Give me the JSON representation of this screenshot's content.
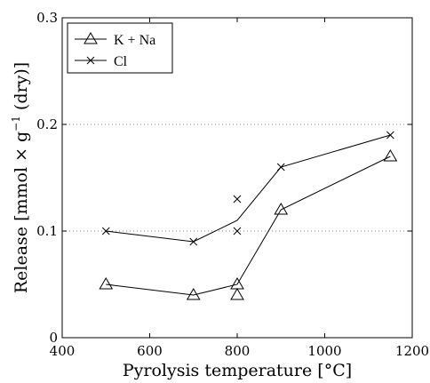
{
  "chart_data": {
    "type": "line",
    "xlabel": "Pyrolysis temperature [°C]",
    "ylabel_main": "Release [mmol × g",
    "ylabel_exp": "−1",
    "ylabel_tail": " (dry)]",
    "xlim": [
      400,
      1200
    ],
    "ylim": [
      0,
      0.3
    ],
    "xticks": [
      "400",
      "600",
      "800",
      "1000",
      "1200"
    ],
    "yticks": [
      "0",
      "0.1",
      "0.2",
      "0.3"
    ],
    "grid": "horizontal dotted at 0.1 and 0.2",
    "legend_position": "top-left",
    "series": [
      {
        "name": "K + Na",
        "marker": "triangle",
        "line": [
          [
            500,
            0.05
          ],
          [
            700,
            0.04
          ],
          [
            800,
            0.05
          ],
          [
            900,
            0.12
          ],
          [
            1150,
            0.17
          ]
        ],
        "points": [
          [
            500,
            0.05
          ],
          [
            700,
            0.04
          ],
          [
            800,
            0.05
          ],
          [
            800,
            0.04
          ],
          [
            900,
            0.12
          ],
          [
            1150,
            0.17
          ]
        ]
      },
      {
        "name": "Cl",
        "marker": "x",
        "line": [
          [
            500,
            0.1
          ],
          [
            700,
            0.09
          ],
          [
            800,
            0.11
          ],
          [
            900,
            0.16
          ],
          [
            1150,
            0.19
          ]
        ],
        "points": [
          [
            500,
            0.1
          ],
          [
            700,
            0.09
          ],
          [
            800,
            0.13
          ],
          [
            800,
            0.1
          ],
          [
            900,
            0.16
          ],
          [
            1150,
            0.19
          ]
        ]
      }
    ]
  }
}
